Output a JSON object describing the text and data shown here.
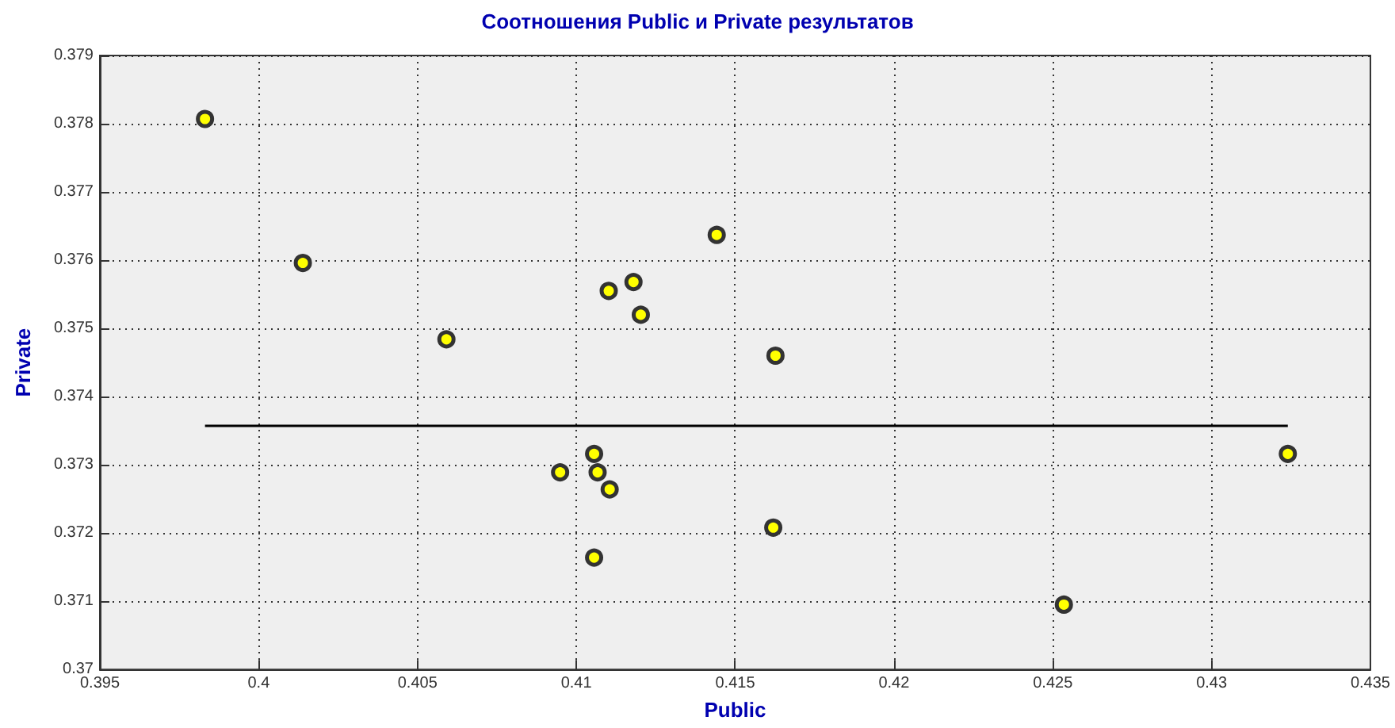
{
  "chart_data": {
    "type": "scatter",
    "title": "Соотношения Public и Private результатов",
    "xlabel": "Public",
    "ylabel": "Private",
    "xlim": [
      0.395,
      0.435
    ],
    "xticks": [
      0.395,
      0.4,
      0.405,
      0.41,
      0.415,
      0.42,
      0.425,
      0.43,
      0.435
    ],
    "ylim": [
      0.37,
      0.379
    ],
    "yticks": [
      0.37,
      0.371,
      0.372,
      0.373,
      0.374,
      0.375,
      0.376,
      0.377,
      0.378,
      0.379
    ],
    "grid": true,
    "series": [
      {
        "color": "#ffff00",
        "marker": "circle",
        "x": [
          0.39831,
          0.40139,
          0.40591,
          0.41102,
          0.4118,
          0.41203,
          0.40949,
          0.41056,
          0.41067,
          0.41105,
          0.41056,
          0.41442,
          0.41627,
          0.4162,
          0.42535,
          0.4324
        ],
        "values": [
          0.37807,
          0.37596,
          0.37484,
          0.37555,
          0.37568,
          0.3752,
          0.37289,
          0.37316,
          0.37289,
          0.37264,
          0.37164,
          0.37637,
          0.3746,
          0.37208,
          0.37095,
          0.37316
        ]
      },
      {
        "type": "line",
        "color": "#000000",
        "marker": "none",
        "x": [
          0.39831,
          0.4324
        ],
        "values": [
          0.37357,
          0.37357
        ]
      }
    ]
  }
}
